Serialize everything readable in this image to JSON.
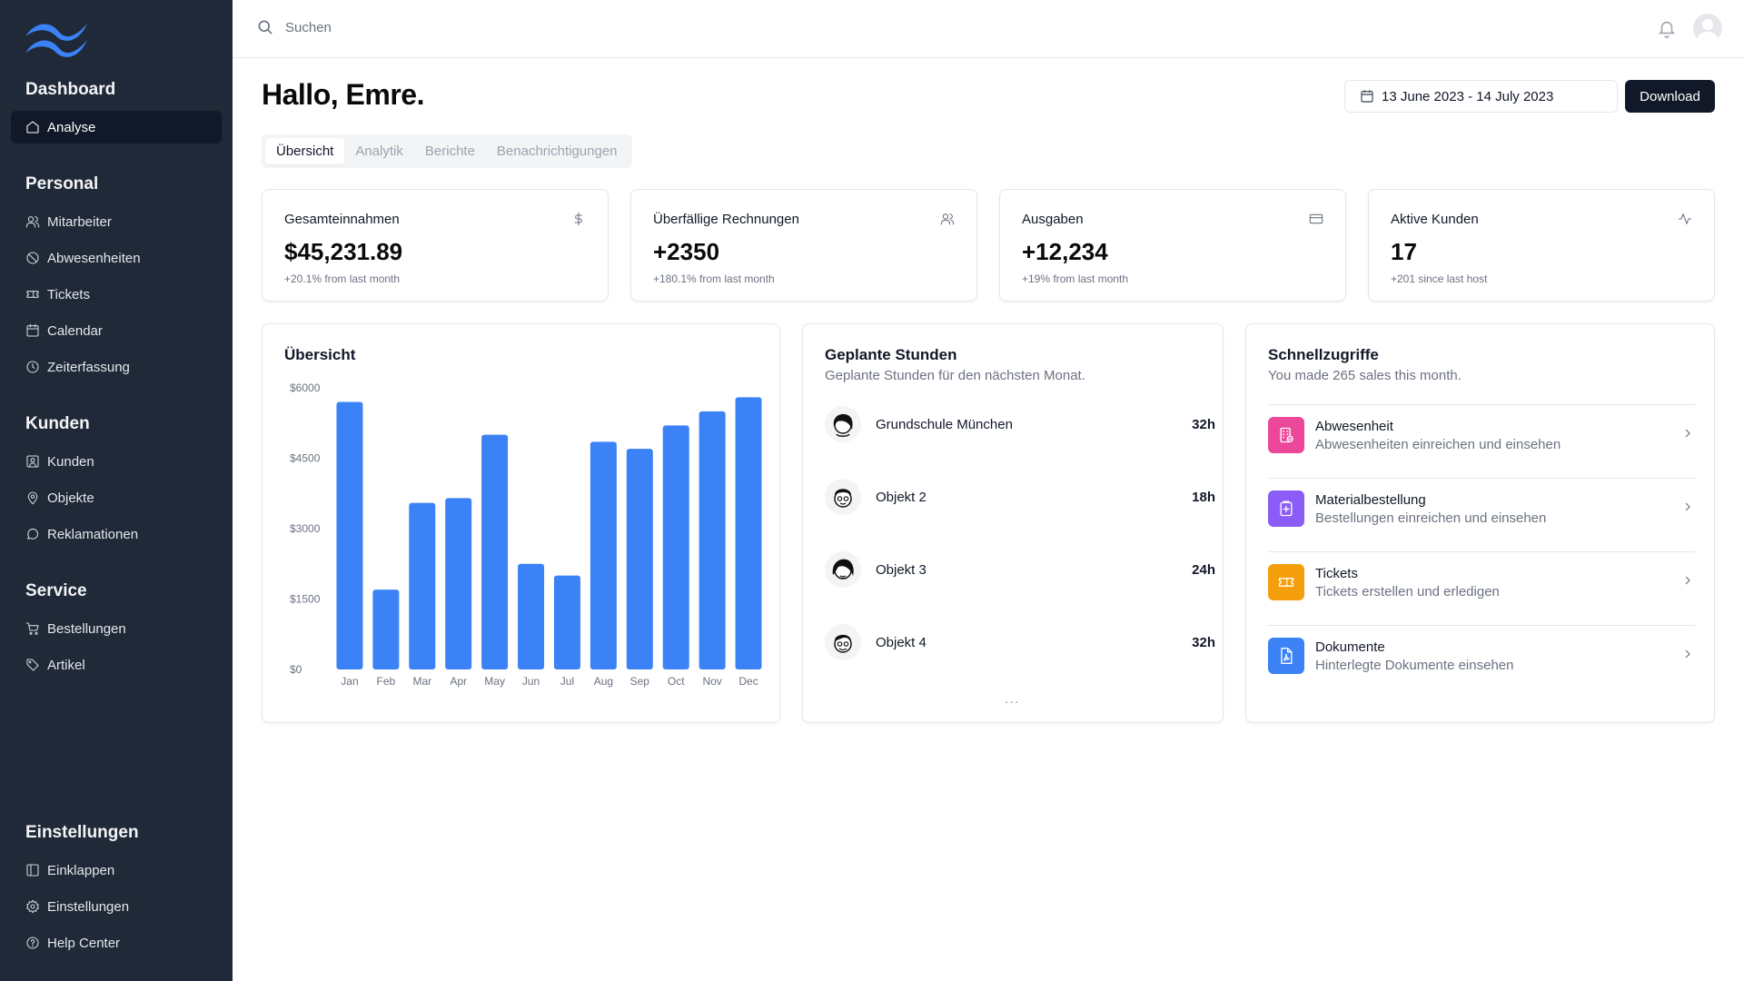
{
  "colors": {
    "sidebar_bg": "#1f2937",
    "accent_blue": "#3b82f6",
    "primary_button": "#111827"
  },
  "sidebar": {
    "logo_icon": "wave-logo-icon",
    "groups": [
      {
        "title": "Dashboard",
        "items": [
          {
            "label": "Analyse",
            "icon": "home-icon",
            "active": true
          }
        ]
      },
      {
        "title": "Personal",
        "items": [
          {
            "label": "Mitarbeiter",
            "icon": "users-icon"
          },
          {
            "label": "Abwesenheiten",
            "icon": "ban-icon"
          },
          {
            "label": "Tickets",
            "icon": "ticket-icon"
          },
          {
            "label": "Calendar",
            "icon": "calendar-icon"
          },
          {
            "label": "Zeiterfassung",
            "icon": "clock-icon"
          }
        ]
      },
      {
        "title": "Kunden",
        "items": [
          {
            "label": "Kunden",
            "icon": "user-square-icon"
          },
          {
            "label": "Objekte",
            "icon": "map-pin-icon"
          },
          {
            "label": "Reklamationen",
            "icon": "message-circle-icon"
          }
        ]
      },
      {
        "title": "Service",
        "items": [
          {
            "label": "Bestellungen",
            "icon": "cart-icon"
          },
          {
            "label": "Artikel",
            "icon": "tag-icon"
          }
        ]
      },
      {
        "title": "Einstellungen",
        "items": [
          {
            "label": "Einklappen",
            "icon": "sidebar-collapse-icon"
          },
          {
            "label": "Einstellungen",
            "icon": "gear-icon"
          },
          {
            "label": "Help Center",
            "icon": "help-circle-icon"
          }
        ]
      }
    ]
  },
  "topbar": {
    "search_placeholder": "Suchen",
    "search_icon": "search-icon",
    "bell_icon": "bell-icon",
    "avatar_icon": "user-avatar-icon"
  },
  "header": {
    "greeting": "Hallo, Emre.",
    "date_range": "13 June 2023 - 14 July 2023",
    "download_label": "Download"
  },
  "tabs": [
    {
      "label": "Übersicht",
      "active": true
    },
    {
      "label": "Analytik"
    },
    {
      "label": "Berichte"
    },
    {
      "label": "Benachrichtigungen"
    }
  ],
  "stats": [
    {
      "title": "Gesamteinnahmen",
      "value": "$45,231.89",
      "sub": "+20.1% from last month",
      "icon": "dollar-icon"
    },
    {
      "title": "Überfällige Rechnungen",
      "value": "+2350",
      "sub": "+180.1% from last month",
      "icon": "users-icon"
    },
    {
      "title": "Ausgaben",
      "value": "+12,234",
      "sub": "+19% from last month",
      "icon": "credit-card-icon"
    },
    {
      "title": "Aktive Kunden",
      "value": "17",
      "sub": "+201 since last host",
      "icon": "activity-icon"
    }
  ],
  "overview_panel": {
    "title": "Übersicht"
  },
  "chart_data": {
    "type": "bar",
    "title": "Übersicht",
    "categories": [
      "Jan",
      "Feb",
      "Mar",
      "Apr",
      "May",
      "Jun",
      "Jul",
      "Aug",
      "Sep",
      "Oct",
      "Nov",
      "Dec"
    ],
    "values": [
      5700,
      1700,
      3550,
      3650,
      5000,
      2250,
      2000,
      4850,
      4700,
      5200,
      5500,
      5800
    ],
    "y_ticks": [
      "$0",
      "$1500",
      "$3000",
      "$4500",
      "$6000"
    ],
    "ylim": [
      0,
      6000
    ],
    "grid": false,
    "color": "#3b82f6"
  },
  "hours_panel": {
    "title": "Geplante Stunden",
    "subtitle": "Geplante Stunden für den nächsten Monat.",
    "rows": [
      {
        "name": "Grundschule München",
        "hours": "32h",
        "icon": "person-avatar-icon"
      },
      {
        "name": "Objekt 2",
        "hours": "18h",
        "icon": "person-avatar-icon"
      },
      {
        "name": "Objekt 3",
        "hours": "24h",
        "icon": "person-avatar-icon"
      },
      {
        "name": "Objekt 4",
        "hours": "32h",
        "icon": "person-avatar-icon"
      }
    ],
    "more": "..."
  },
  "quick_panel": {
    "title": "Schnellzugriffe",
    "subtitle": "You made 265 sales this month.",
    "items": [
      {
        "title": "Abwesenheit",
        "desc": "Abwesenheiten einreichen und einsehen",
        "icon": "building-icon",
        "color": "#ec4899"
      },
      {
        "title": "Materialbestellung",
        "desc": "Bestellungen einreichen und einsehen",
        "icon": "clipboard-plus-icon",
        "color": "#8b5cf6"
      },
      {
        "title": "Tickets",
        "desc": "Tickets erstellen und erledigen",
        "icon": "ticket-icon",
        "color": "#f59e0b"
      },
      {
        "title": "Dokumente",
        "desc": "Hinterlegte Dokumente einsehen",
        "icon": "file-icon",
        "color": "#3b82f6"
      }
    ]
  }
}
